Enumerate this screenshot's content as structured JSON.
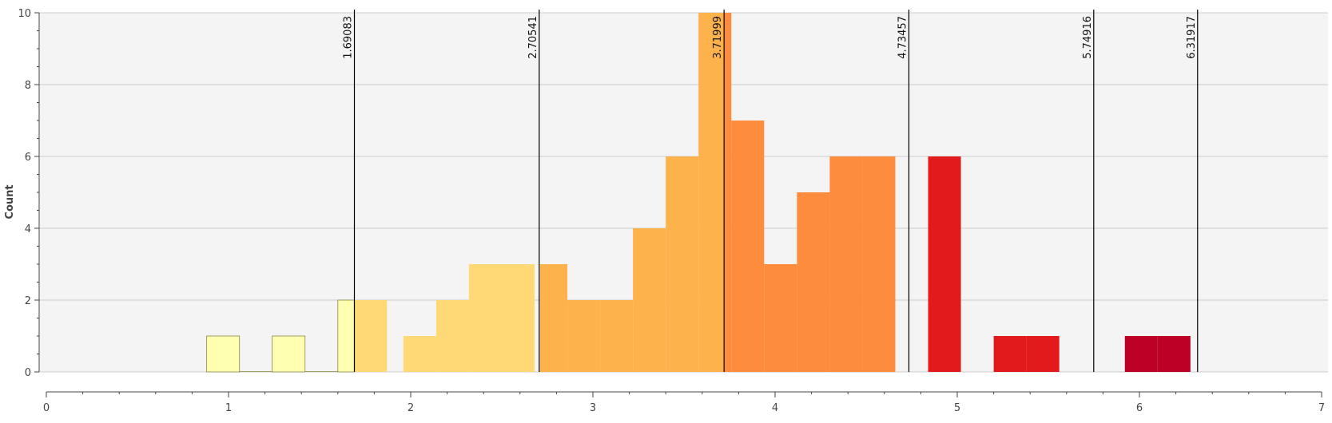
{
  "chart_data": {
    "type": "bar",
    "title": "",
    "xlabel": "",
    "ylabel": "Count",
    "xlim": [
      0,
      7
    ],
    "ylim": [
      0,
      10
    ],
    "grid": true,
    "x_ticks": [
      "0",
      "1",
      "2",
      "3",
      "4",
      "5",
      "6",
      "7"
    ],
    "y_ticks": [
      "0",
      "2",
      "4",
      "6",
      "8",
      "10"
    ],
    "bin_width": 0.18,
    "bins": [
      {
        "x0": 0.88,
        "count": 1,
        "color": "#FFFFB2"
      },
      {
        "x0": 1.24,
        "count": 1,
        "color": "#FFFFB2"
      },
      {
        "x0": 1.6,
        "count": 2,
        "color": "#FFFFB2"
      },
      {
        "x0": 1.69,
        "count": 2,
        "color": "#FED976"
      },
      {
        "x0": 1.96,
        "count": 1,
        "color": "#FED976"
      },
      {
        "x0": 2.14,
        "count": 2,
        "color": "#FED976"
      },
      {
        "x0": 2.32,
        "count": 3,
        "color": "#FED976"
      },
      {
        "x0": 2.5,
        "count": 3,
        "color": "#FED976"
      },
      {
        "x0": 2.71,
        "count": 3,
        "color": "#FEB24C"
      },
      {
        "x0": 2.86,
        "count": 2,
        "color": "#FEB24C"
      },
      {
        "x0": 3.04,
        "count": 2,
        "color": "#FEB24C"
      },
      {
        "x0": 3.22,
        "count": 4,
        "color": "#FEB24C"
      },
      {
        "x0": 3.4,
        "count": 6,
        "color": "#FEB24C"
      },
      {
        "x0": 3.58,
        "count": 10,
        "color": "#FEB24C"
      },
      {
        "x0": 3.72,
        "count": 10,
        "color": "#FD8D3C"
      },
      {
        "x0": 3.76,
        "count": 7,
        "color": "#FD8D3C"
      },
      {
        "x0": 3.94,
        "count": 3,
        "color": "#FD8D3C"
      },
      {
        "x0": 4.12,
        "count": 5,
        "color": "#FD8D3C"
      },
      {
        "x0": 4.3,
        "count": 6,
        "color": "#FD8D3C"
      },
      {
        "x0": 4.48,
        "count": 6,
        "color": "#FD8D3C"
      },
      {
        "x0": 4.84,
        "count": 6,
        "color": "#E31A1C"
      },
      {
        "x0": 5.2,
        "count": 1,
        "color": "#E31A1C"
      },
      {
        "x0": 5.38,
        "count": 1,
        "color": "#E31A1C"
      },
      {
        "x0": 5.92,
        "count": 1,
        "color": "#BD0026"
      },
      {
        "x0": 6.1,
        "count": 1,
        "color": "#BD0026"
      }
    ],
    "breakpoints": [
      {
        "value": 1.69083,
        "label": "1.69083"
      },
      {
        "value": 2.70541,
        "label": "2.70541"
      },
      {
        "value": 3.71999,
        "label": "3.71999"
      },
      {
        "value": 4.73457,
        "label": "4.73457"
      },
      {
        "value": 5.74916,
        "label": "5.74916"
      },
      {
        "value": 6.31917,
        "label": "6.31917"
      }
    ],
    "colors": {
      "plot_background": "#F4F4F4",
      "gridline": "#CCCCCC",
      "axis": "#444444",
      "breakpoint_line": "#000000",
      "bar_outline": "#888844"
    }
  }
}
